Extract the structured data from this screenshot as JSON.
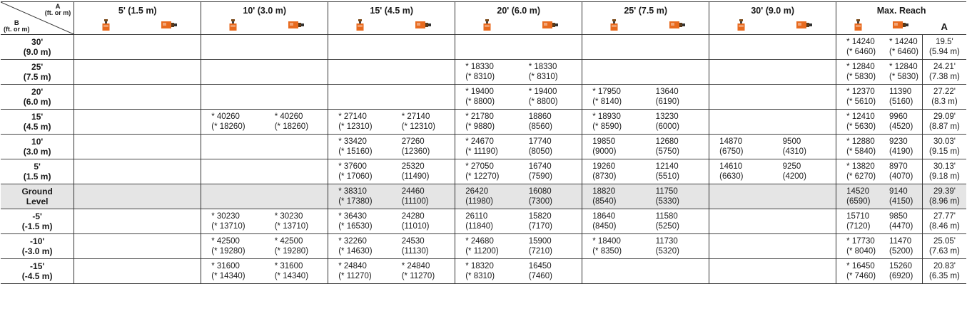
{
  "corner": {
    "a": "A",
    "a_unit": "(ft. or m)",
    "b": "B",
    "b_unit": "(ft. or m)"
  },
  "columns": [
    "5' (1.5 m)",
    "10' (3.0 m)",
    "15' (4.5 m)",
    "20' (6.0 m)",
    "25' (7.5 m)",
    "30' (9.0 m)",
    "Max. Reach"
  ],
  "column_a": "A",
  "icons": {
    "front": "excavator-front-icon",
    "side": "excavator-side-icon",
    "color": "#e86a1e"
  },
  "rows": [
    {
      "h1": "30'",
      "h2": "(9.0 m)",
      "ground": false,
      "cells": [
        [
          "",
          "",
          ""
        ],
        [
          "",
          "",
          ""
        ],
        [
          "",
          "",
          ""
        ],
        [
          "",
          "",
          ""
        ],
        [
          "",
          "",
          ""
        ],
        [
          "",
          "",
          ""
        ],
        [
          "",
          "",
          ""
        ],
        [
          "",
          "",
          ""
        ],
        [
          "",
          "",
          ""
        ],
        [
          "",
          "",
          ""
        ],
        [
          "",
          "",
          ""
        ],
        [
          "",
          "",
          ""
        ],
        [
          "* 14240",
          "(* 6460)"
        ],
        [
          "* 14240",
          "(* 6460)"
        ],
        [
          "19.5'",
          "(5.94 m)"
        ]
      ]
    },
    {
      "h1": "25'",
      "h2": "(7.5 m)",
      "ground": false,
      "cells": [
        [
          "",
          ""
        ],
        [
          "",
          ""
        ],
        [
          "",
          ""
        ],
        [
          "",
          ""
        ],
        [
          "",
          ""
        ],
        [
          "",
          ""
        ],
        [
          "* 18330",
          "(* 8310)"
        ],
        [
          "* 18330",
          "(* 8310)"
        ],
        [
          "",
          ""
        ],
        [
          "",
          ""
        ],
        [
          "",
          ""
        ],
        [
          "",
          ""
        ],
        [
          "* 12840",
          "(* 5830)"
        ],
        [
          "* 12840",
          "(* 5830)"
        ],
        [
          "24.21'",
          "(7.38 m)"
        ]
      ]
    },
    {
      "h1": "20'",
      "h2": "(6.0 m)",
      "ground": false,
      "cells": [
        [
          "",
          ""
        ],
        [
          "",
          ""
        ],
        [
          "",
          ""
        ],
        [
          "",
          ""
        ],
        [
          "",
          ""
        ],
        [
          "",
          ""
        ],
        [
          "* 19400",
          "(* 8800)"
        ],
        [
          "* 19400",
          "(* 8800)"
        ],
        [
          "* 17950",
          "(* 8140)"
        ],
        [
          "13640",
          "(6190)"
        ],
        [
          "",
          ""
        ],
        [
          "",
          ""
        ],
        [
          "* 12370",
          "(* 5610)"
        ],
        [
          "11390",
          "(5160)"
        ],
        [
          "27.22'",
          "(8.3 m)"
        ]
      ]
    },
    {
      "h1": "15'",
      "h2": "(4.5 m)",
      "ground": false,
      "cells": [
        [
          "",
          ""
        ],
        [
          "",
          ""
        ],
        [
          "* 40260",
          "(* 18260)"
        ],
        [
          "* 40260",
          "(* 18260)"
        ],
        [
          "* 27140",
          "(* 12310)"
        ],
        [
          "* 27140",
          "(* 12310)"
        ],
        [
          "* 21780",
          "(* 9880)"
        ],
        [
          "18860",
          "(8560)"
        ],
        [
          "* 18930",
          "(* 8590)"
        ],
        [
          "13230",
          "(6000)"
        ],
        [
          "",
          ""
        ],
        [
          "",
          ""
        ],
        [
          "* 12410",
          "(* 5630)"
        ],
        [
          "9960",
          "(4520)"
        ],
        [
          "29.09'",
          "(8.87 m)"
        ]
      ]
    },
    {
      "h1": "10'",
      "h2": "(3.0 m)",
      "ground": false,
      "cells": [
        [
          "",
          ""
        ],
        [
          "",
          ""
        ],
        [
          "",
          ""
        ],
        [
          "",
          ""
        ],
        [
          "* 33420",
          "(* 15160)"
        ],
        [
          "27260",
          "(12360)"
        ],
        [
          "* 24670",
          "(* 11190)"
        ],
        [
          "17740",
          "(8050)"
        ],
        [
          "19850",
          "(9000)"
        ],
        [
          "12680",
          "(5750)"
        ],
        [
          "14870",
          "(6750)"
        ],
        [
          "9500",
          "(4310)"
        ],
        [
          "* 12880",
          "(* 5840)"
        ],
        [
          "9230",
          "(4190)"
        ],
        [
          "30.03'",
          "(9.15 m)"
        ]
      ]
    },
    {
      "h1": "5'",
      "h2": "(1.5 m)",
      "ground": false,
      "cells": [
        [
          "",
          ""
        ],
        [
          "",
          ""
        ],
        [
          "",
          ""
        ],
        [
          "",
          ""
        ],
        [
          "* 37600",
          "(* 17060)"
        ],
        [
          "25320",
          "(11490)"
        ],
        [
          "* 27050",
          "(* 12270)"
        ],
        [
          "16740",
          "(7590)"
        ],
        [
          "19260",
          "(8730)"
        ],
        [
          "12140",
          "(5510)"
        ],
        [
          "14610",
          "(6630)"
        ],
        [
          "9250",
          "(4200)"
        ],
        [
          "* 13820",
          "(* 6270)"
        ],
        [
          "8970",
          "(4070)"
        ],
        [
          "30.13'",
          "(9.18 m)"
        ]
      ]
    },
    {
      "h1": "Ground",
      "h2": "Level",
      "ground": true,
      "cells": [
        [
          "",
          ""
        ],
        [
          "",
          ""
        ],
        [
          "",
          ""
        ],
        [
          "",
          ""
        ],
        [
          "* 38310",
          "(* 17380)"
        ],
        [
          "24460",
          "(11100)"
        ],
        [
          "26420",
          "(11980)"
        ],
        [
          "16080",
          "(7300)"
        ],
        [
          "18820",
          "(8540)"
        ],
        [
          "11750",
          "(5330)"
        ],
        [
          "",
          ""
        ],
        [
          "",
          ""
        ],
        [
          "14520",
          "(6590)"
        ],
        [
          "9140",
          "(4150)"
        ],
        [
          "29.39'",
          "(8.96 m)"
        ]
      ]
    },
    {
      "h1": "-5'",
      "h2": "(-1.5 m)",
      "ground": false,
      "cells": [
        [
          "",
          ""
        ],
        [
          "",
          ""
        ],
        [
          "* 30230",
          "(* 13710)"
        ],
        [
          "* 30230",
          "(* 13710)"
        ],
        [
          "* 36430",
          "(* 16530)"
        ],
        [
          "24280",
          "(11010)"
        ],
        [
          "26110",
          "(11840)"
        ],
        [
          "15820",
          "(7170)"
        ],
        [
          "18640",
          "(8450)"
        ],
        [
          "11580",
          "(5250)"
        ],
        [
          "",
          ""
        ],
        [
          "",
          ""
        ],
        [
          "15710",
          "(7120)"
        ],
        [
          "9850",
          "(4470)"
        ],
        [
          "27.77'",
          "(8.46 m)"
        ]
      ]
    },
    {
      "h1": "-10'",
      "h2": "(-3.0 m)",
      "ground": false,
      "cells": [
        [
          "",
          ""
        ],
        [
          "",
          ""
        ],
        [
          "* 42500",
          "(* 19280)"
        ],
        [
          "* 42500",
          "(* 19280)"
        ],
        [
          "* 32260",
          "(* 14630)"
        ],
        [
          "24530",
          "(11130)"
        ],
        [
          "* 24680",
          "(* 11200)"
        ],
        [
          "15900",
          "(7210)"
        ],
        [
          "* 18400",
          "(* 8350)"
        ],
        [
          "11730",
          "(5320)"
        ],
        [
          "",
          ""
        ],
        [
          "",
          ""
        ],
        [
          "* 17730",
          "(* 8040)"
        ],
        [
          "11470",
          "(5200)"
        ],
        [
          "25.05'",
          "(7.63 m)"
        ]
      ]
    },
    {
      "h1": "-15'",
      "h2": "(-4.5 m)",
      "ground": false,
      "cells": [
        [
          "",
          ""
        ],
        [
          "",
          ""
        ],
        [
          "* 31600",
          "(* 14340)"
        ],
        [
          "* 31600",
          "(* 14340)"
        ],
        [
          "* 24840",
          "(* 11270)"
        ],
        [
          "* 24840",
          "(* 11270)"
        ],
        [
          "* 18320",
          "(* 8310)"
        ],
        [
          "16450",
          "(7460)"
        ],
        [
          "",
          ""
        ],
        [
          "",
          ""
        ],
        [
          "",
          ""
        ],
        [
          "",
          ""
        ],
        [
          "* 16450",
          "(* 7460)"
        ],
        [
          "15260",
          "(6920)"
        ],
        [
          "20.83'",
          "(6.35 m)"
        ]
      ]
    }
  ]
}
